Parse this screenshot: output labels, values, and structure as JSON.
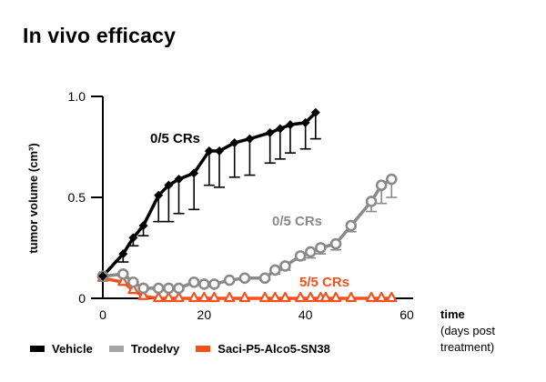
{
  "title": "In vivo efficacy",
  "colors": {
    "vehicle": "#000000",
    "trodelvy": "#8a8a8a",
    "trodelvy_legend": "#a6a6a6",
    "saci": "#f4511e"
  },
  "legend": [
    {
      "label": "Vehicle",
      "color": "#000000"
    },
    {
      "label": "Trodelvy",
      "color": "#a6a6a6"
    },
    {
      "label": "Saci-P5-Alco5-SN38",
      "color": "#f4511e"
    }
  ],
  "xlabel": {
    "main": "time",
    "sub1": "(days post",
    "sub2": "treatment)"
  },
  "ylabel": "tumor volume (cm³)",
  "chart_data": {
    "type": "line",
    "title": "In vivo efficacy",
    "xlabel": "time (days post treatment)",
    "ylabel": "tumor volume (cm³)",
    "xlim": [
      0,
      60
    ],
    "ylim": [
      0,
      1.0
    ],
    "xticks": [
      0,
      20,
      40,
      60
    ],
    "xtick_labels": [
      "0",
      "20",
      "40",
      "60"
    ],
    "yticks": [
      0,
      0.5,
      1.0
    ],
    "ytick_labels": [
      "0",
      "0.5",
      "1.0"
    ],
    "grid": false,
    "legend_position": "bottom",
    "series": [
      {
        "name": "Vehicle",
        "color": "#000000",
        "marker": "diamond",
        "x": [
          0,
          4,
          6,
          8,
          11,
          13,
          15,
          18,
          21,
          23,
          26,
          29,
          33,
          35,
          37,
          40,
          42
        ],
        "y": [
          0.11,
          0.22,
          0.3,
          0.36,
          0.51,
          0.56,
          0.59,
          0.62,
          0.73,
          0.73,
          0.77,
          0.79,
          0.82,
          0.84,
          0.86,
          0.87,
          0.92
        ],
        "err_lower": [
          0,
          0.04,
          0.04,
          0.05,
          0.13,
          0.18,
          0.17,
          0.18,
          0.17,
          0.18,
          0.17,
          0.18,
          0.15,
          0.15,
          0.14,
          0.13,
          0.13
        ],
        "annotation": "0/5 CRs"
      },
      {
        "name": "Trodelvy",
        "color": "#8a8a8a",
        "marker": "circle",
        "x": [
          0,
          4,
          6,
          8,
          11,
          13,
          15,
          18,
          20,
          22,
          25,
          28,
          32,
          34,
          36,
          39,
          41,
          43,
          46,
          49,
          53,
          55,
          57
        ],
        "y": [
          0.11,
          0.12,
          0.08,
          0.05,
          0.05,
          0.05,
          0.05,
          0.08,
          0.07,
          0.07,
          0.09,
          0.1,
          0.1,
          0.14,
          0.16,
          0.21,
          0.23,
          0.25,
          0.27,
          0.36,
          0.48,
          0.56,
          0.59
        ],
        "err_lower": [
          0,
          0.01,
          0.01,
          0.01,
          0.01,
          0.01,
          0.01,
          0.01,
          0.01,
          0.01,
          0.01,
          0.01,
          0.01,
          0.02,
          0.02,
          0.02,
          0.03,
          0.03,
          0.03,
          0.03,
          0.05,
          0.09,
          0.09
        ],
        "annotation": "0/5 CRs"
      },
      {
        "name": "Saci-P5-Alco5-SN38",
        "color": "#f4511e",
        "marker": "triangle",
        "x": [
          0,
          4,
          6,
          8,
          11,
          13,
          15,
          18,
          20,
          22,
          25,
          28,
          32,
          34,
          36,
          39,
          41,
          43,
          44,
          46,
          49,
          53,
          55,
          57
        ],
        "y": [
          0.1,
          0.08,
          0.04,
          0.01,
          0,
          0,
          0,
          0,
          0,
          0,
          0,
          0,
          0,
          0,
          0,
          0,
          0,
          0,
          0,
          0,
          0,
          0,
          0,
          0
        ],
        "err_lower": [
          0,
          0,
          0,
          0,
          0,
          0,
          0,
          0,
          0,
          0,
          0,
          0,
          0,
          0,
          0,
          0,
          0,
          0,
          0,
          0,
          0,
          0,
          0,
          0
        ],
        "annotation": "5/5 CRs"
      }
    ]
  }
}
